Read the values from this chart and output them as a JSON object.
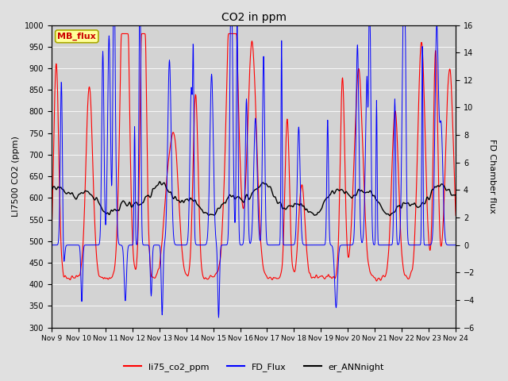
{
  "title": "CO2 in ppm",
  "ylabel_left": "LI7500 CO2 (ppm)",
  "ylabel_right": "FD Chamber flux",
  "ylim_left": [
    300,
    1000
  ],
  "ylim_right": [
    -6,
    16
  ],
  "yticks_left": [
    300,
    350,
    400,
    450,
    500,
    550,
    600,
    650,
    700,
    750,
    800,
    850,
    900,
    950,
    1000
  ],
  "yticks_right": [
    -6,
    -4,
    -2,
    0,
    2,
    4,
    6,
    8,
    10,
    12,
    14,
    16
  ],
  "xtick_labels": [
    "Nov 9",
    "Nov 10",
    "Nov 11",
    "Nov 12",
    "Nov 13",
    "Nov 14",
    "Nov 15",
    "Nov 16",
    "Nov 17",
    "Nov 18",
    "Nov 19",
    "Nov 20",
    "Nov 21",
    "Nov 22",
    "Nov 23",
    "Nov 24"
  ],
  "fig_bg": "#e0e0e0",
  "plot_bg": "#d3d3d3",
  "line_red": "#ff0000",
  "line_blue": "#0000ff",
  "line_black": "#000000",
  "legend_labels": [
    "li75_co2_ppm",
    "FD_Flux",
    "er_ANNnight"
  ],
  "mb_flux_box_color": "#ffff99",
  "mb_flux_text_color": "#cc0000",
  "mb_flux_edge_color": "#aaaa00",
  "grid_color": "#ffffff",
  "n_days": 15,
  "pts_per_day": 96,
  "seed": 7
}
